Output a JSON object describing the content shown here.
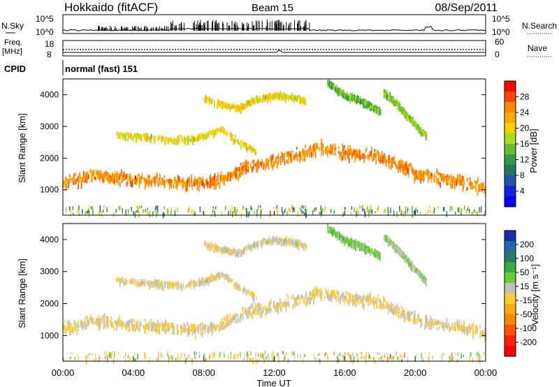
{
  "header": {
    "station": "Hokkaido (fitACF)",
    "beam": "Beam 15",
    "date": "08/Sep/2011"
  },
  "noise_panel": {
    "left_label": "N.Sky",
    "right_label": "N.Search",
    "y_top_tick": "10^5",
    "y_bottom_tick": "10^0"
  },
  "freq_panel": {
    "left_label_1": "Freq.",
    "left_label_2": "[MHz]",
    "right_label": "Nave",
    "left_ticks": [
      "18",
      "8"
    ],
    "right_ticks": [
      "60",
      "0"
    ]
  },
  "cpid_panel": {
    "label": "CPID",
    "text": "normal (fast) 151"
  },
  "x_axis": {
    "label": "Time UT",
    "ticks": [
      "00:00",
      "04:00",
      "08:00",
      "12:00",
      "16:00",
      "20:00",
      "00:00"
    ]
  },
  "power_panel": {
    "ylabel": "Slant Range [km]",
    "yticks": [
      "1000",
      "2000",
      "3000",
      "4000"
    ],
    "colorbar_label": "Power [dB]",
    "colorbar_ticks": [
      "28",
      "24",
      "20",
      "16",
      "12",
      "8",
      "4"
    ],
    "colorbar_colors": [
      "#ff0000",
      "#ff4400",
      "#ff8800",
      "#ffaa00",
      "#ffcc00",
      "#aadd22",
      "#66bb33",
      "#339944",
      "#227766",
      "#2255aa",
      "#1122dd",
      "#0000ff"
    ]
  },
  "velocity_panel": {
    "ylabel": "Slant Range [km]",
    "yticks": [
      "1000",
      "2000",
      "3000",
      "4000"
    ],
    "colorbar_label": "Velocity [m s⁻¹]",
    "colorbar_ticks": [
      "200",
      "100",
      "50",
      "15",
      "-15",
      "-50",
      "-100",
      "-200"
    ],
    "colorbar_colors": [
      "#1a2aa8",
      "#2266aa",
      "#2a7766",
      "#33aa44",
      "#66cc33",
      "#c0c0bc",
      "#ffcc33",
      "#ffaa11",
      "#ff8800",
      "#ff5500",
      "#ff2200",
      "#ff0000"
    ]
  },
  "chart_data": {
    "type": "heatmap",
    "title": "Hokkaido (fitACF) Beam 15 08/Sep/2011",
    "xlabel": "Time UT",
    "ylabel": "Slant Range [km]",
    "x_range_hours": [
      0,
      24
    ],
    "y_range_km": [
      200,
      4500
    ],
    "panels": [
      "Power [dB]",
      "Velocity [m s⁻¹]"
    ],
    "power_scale_db": [
      0,
      32
    ],
    "velocity_scale_ms": [
      -250,
      250
    ],
    "scatter_bands": [
      {
        "t": [
          0.0,
          0.8,
          1.6,
          2.4,
          3.2,
          4.0,
          4.8,
          5.6,
          6.4,
          7.2,
          8.0,
          8.8,
          9.6,
          10.4,
          11.2,
          12.0,
          12.8,
          13.6,
          14.4,
          15.2,
          16.0,
          16.8,
          17.6,
          18.4,
          19.2,
          20.0,
          20.8,
          21.6,
          22.4,
          23.2,
          24.0
        ],
        "range_km": [
          1250,
          1300,
          1500,
          1450,
          1380,
          1350,
          1320,
          1280,
          1250,
          1230,
          1220,
          1300,
          1500,
          1750,
          1850,
          1950,
          2050,
          2150,
          2350,
          2300,
          2200,
          2150,
          2100,
          1950,
          1750,
          1550,
          1450,
          1350,
          1300,
          1200,
          1100
        ],
        "power_db": 26,
        "velocity_ms": 0
      },
      {
        "t": [
          3.0,
          4.0,
          5.0,
          6.0,
          7.0,
          8.0,
          9.0,
          10.0,
          11.0
        ],
        "range_km": [
          2750,
          2700,
          2650,
          2600,
          2600,
          2700,
          2950,
          2500,
          2200
        ],
        "power_db": 20,
        "velocity_ms": 0
      },
      {
        "t": [
          8.0,
          9.0,
          10.0,
          11.0,
          12.0,
          13.0,
          13.8
        ],
        "range_km": [
          3900,
          3700,
          3600,
          3900,
          4000,
          3950,
          3800
        ],
        "power_db": 20,
        "velocity_ms": 10
      },
      {
        "t": [
          15.0,
          16.0,
          17.0,
          18.0
        ],
        "range_km": [
          4400,
          4000,
          3800,
          3500
        ],
        "power_db": 14,
        "velocity_ms": 60
      },
      {
        "t": [
          18.2,
          19.0,
          19.8,
          20.6
        ],
        "range_km": [
          4100,
          3700,
          3200,
          2700
        ],
        "power_db": 16,
        "velocity_ms": 40
      }
    ]
  }
}
